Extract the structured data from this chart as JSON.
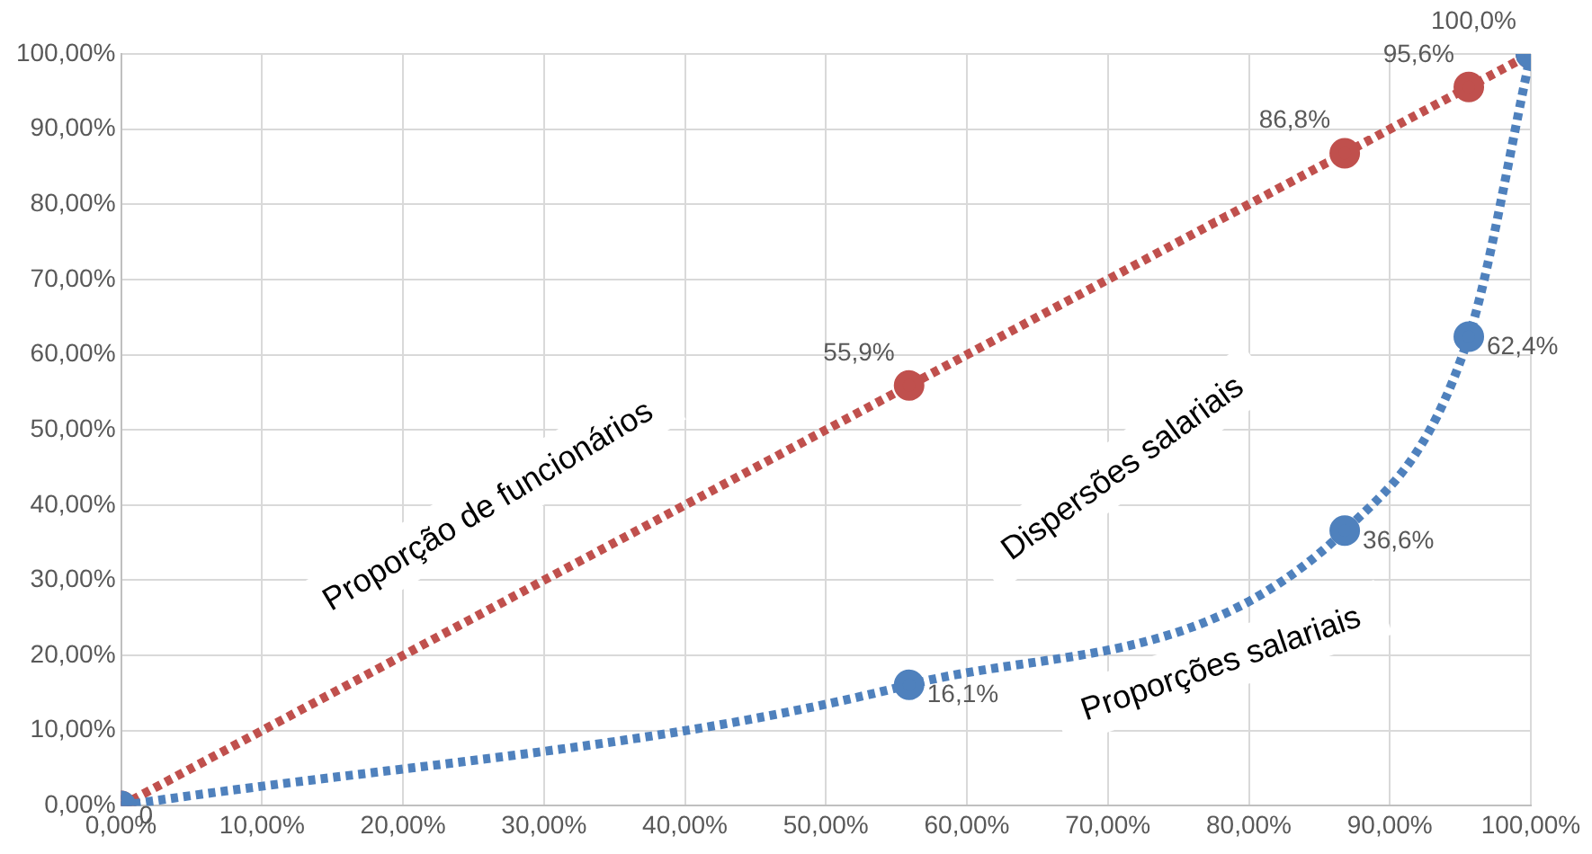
{
  "chart_data": {
    "type": "line",
    "x": [
      0,
      55.9,
      86.8,
      95.6,
      100
    ],
    "series": [
      {
        "color": "#4f81bd",
        "values": [
          0,
          16.1,
          36.6,
          62.4,
          100
        ],
        "value_labels": [
          null,
          "16,1%",
          "36,6%",
          "62,4%",
          null
        ]
      },
      {
        "color": "#c0504d",
        "values": [
          0,
          55.9,
          86.8,
          95.6,
          100
        ],
        "value_labels": [
          "0",
          "55,9%",
          "86,8%",
          "95,6%",
          "100,0%"
        ]
      }
    ],
    "xlim": [
      0,
      100
    ],
    "ylim": [
      0,
      100
    ],
    "xticks": [
      {
        "value": 0,
        "label": "0,00%"
      },
      {
        "value": 10,
        "label": "10,00%"
      },
      {
        "value": 20,
        "label": "20,00%"
      },
      {
        "value": 30,
        "label": "30,00%"
      },
      {
        "value": 40,
        "label": "40,00%"
      },
      {
        "value": 50,
        "label": "50,00%"
      },
      {
        "value": 60,
        "label": "60,00%"
      },
      {
        "value": 70,
        "label": "70,00%"
      },
      {
        "value": 80,
        "label": "80,00%"
      },
      {
        "value": 90,
        "label": "90,00%"
      },
      {
        "value": 100,
        "label": "100,00%"
      }
    ],
    "yticks": [
      {
        "value": 0,
        "label": "0,00%"
      },
      {
        "value": 10,
        "label": "10,00%"
      },
      {
        "value": 20,
        "label": "20,00%"
      },
      {
        "value": 30,
        "label": "30,00%"
      },
      {
        "value": 40,
        "label": "40,00%"
      },
      {
        "value": 50,
        "label": "50,00%"
      },
      {
        "value": 60,
        "label": "60,00%"
      },
      {
        "value": 70,
        "label": "70,00%"
      },
      {
        "value": 80,
        "label": "80,00%"
      },
      {
        "value": 90,
        "label": "90,00%"
      },
      {
        "value": 100,
        "label": "100,00%"
      }
    ],
    "grid": true,
    "legend": false,
    "marker": "circle",
    "line_style": "dotted",
    "annotations": [
      "Proporção de funcionários",
      "Dispersões salariais",
      "Proporções salariais"
    ]
  }
}
